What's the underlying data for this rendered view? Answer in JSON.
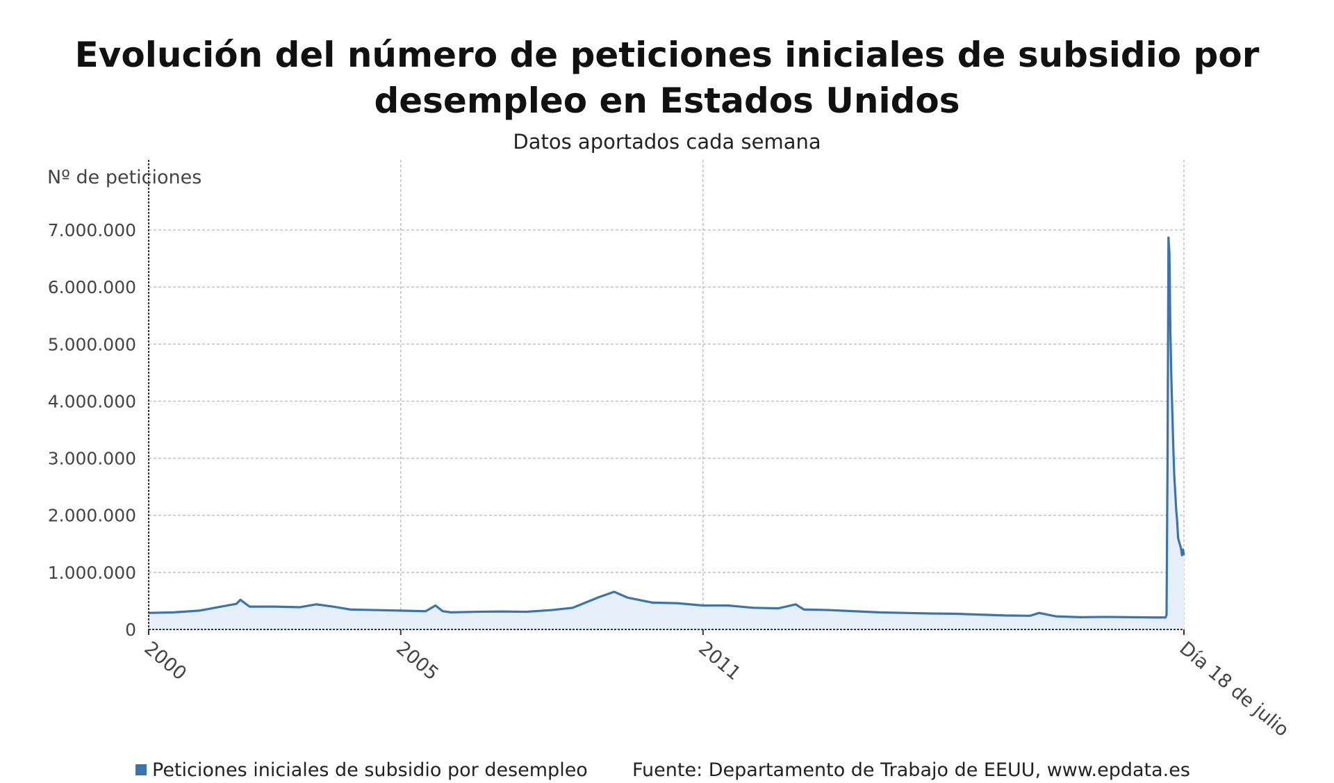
{
  "header": {
    "title": "Evolución del número de peticiones iniciales de subsidio por desempleo en Estados Unidos",
    "subtitle": "Datos aportados cada semana"
  },
  "footer": {
    "legend_label": "Peticiones iniciales de subsidio por desempleo",
    "source": "Fuente: Departamento de Trabajo de EEUU, www.epdata.es"
  },
  "colors": {
    "series_line": "#3a74aa",
    "series_fill": "#e6eef7",
    "grid": "#bdbdbd",
    "axis": "#333333"
  },
  "chart_data": {
    "type": "area",
    "title": "Evolución del número de peticiones iniciales de subsidio por desempleo en Estados Unidos",
    "subtitle": "Datos aportados cada semana",
    "ylabel": "Nº de peticiones",
    "xlabel": "",
    "ylim": [
      0,
      7500000
    ],
    "yticks": [
      0,
      1000000,
      2000000,
      3000000,
      4000000,
      5000000,
      6000000,
      7000000
    ],
    "ytick_labels": [
      "0",
      "1.000.000",
      "2.000.000",
      "3.000.000",
      "4.000.000",
      "5.000.000",
      "6.000.000",
      "7.000.000"
    ],
    "xlim": [
      "2000-01-01",
      "2020-07-18"
    ],
    "xticks": [
      "2000-01-01",
      "2005-01-01",
      "2011-01-01",
      "2020-07-18"
    ],
    "xtick_labels": [
      "2000",
      "2005",
      "2011",
      "Día 18 de julio"
    ],
    "grid": true,
    "legend_position": "bottom-left",
    "series": [
      {
        "name": "Peticiones iniciales de subsidio por desempleo",
        "x": [
          "2000-01-01",
          "2000-07-01",
          "2001-01-01",
          "2001-07-01",
          "2001-09-29",
          "2001-10-27",
          "2002-01-01",
          "2002-07-01",
          "2003-01-01",
          "2003-05-01",
          "2003-09-01",
          "2004-01-01",
          "2004-07-01",
          "2005-01-01",
          "2005-07-01",
          "2005-09-10",
          "2005-11-01",
          "2006-01-01",
          "2006-07-01",
          "2007-01-01",
          "2007-07-01",
          "2008-01-01",
          "2008-06-01",
          "2008-09-01",
          "2008-12-01",
          "2009-03-28",
          "2009-07-01",
          "2010-01-01",
          "2010-07-01",
          "2011-01-01",
          "2011-07-01",
          "2012-01-01",
          "2012-07-01",
          "2012-11-03",
          "2013-01-01",
          "2013-07-01",
          "2014-01-01",
          "2014-07-01",
          "2015-01-01",
          "2015-07-01",
          "2016-01-01",
          "2016-07-01",
          "2017-01-01",
          "2017-07-01",
          "2017-09-02",
          "2018-01-01",
          "2018-07-01",
          "2019-01-01",
          "2019-07-01",
          "2020-01-01",
          "2020-03-07",
          "2020-03-14",
          "2020-03-21",
          "2020-03-28",
          "2020-04-04",
          "2020-04-11",
          "2020-04-18",
          "2020-04-25",
          "2020-05-02",
          "2020-05-09",
          "2020-05-16",
          "2020-05-23",
          "2020-05-30",
          "2020-06-06",
          "2020-06-13",
          "2020-06-20",
          "2020-06-27",
          "2020-07-04",
          "2020-07-11",
          "2020-07-18"
        ],
        "values": [
          290000,
          300000,
          330000,
          410000,
          450000,
          520000,
          400000,
          400000,
          390000,
          440000,
          400000,
          350000,
          340000,
          330000,
          320000,
          420000,
          320000,
          300000,
          310000,
          315000,
          310000,
          340000,
          380000,
          470000,
          560000,
          660000,
          560000,
          470000,
          460000,
          420000,
          420000,
          380000,
          370000,
          440000,
          350000,
          340000,
          320000,
          300000,
          290000,
          280000,
          275000,
          260000,
          245000,
          240000,
          290000,
          230000,
          215000,
          220000,
          215000,
          210000,
          211000,
          256000,
          2900000,
          6867000,
          6600000,
          5200000,
          4400000,
          3800000,
          3200000,
          2700000,
          2400000,
          2100000,
          1900000,
          1600000,
          1540000,
          1480000,
          1420000,
          1300000,
          1400000,
          1300000
        ]
      }
    ]
  }
}
